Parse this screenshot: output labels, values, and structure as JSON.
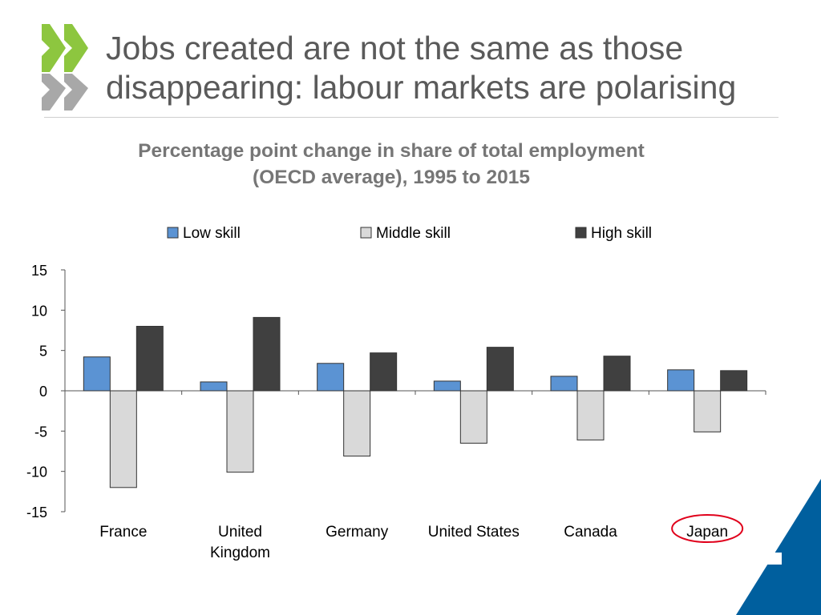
{
  "slide": {
    "title_line1": "Jobs created are not the same as those",
    "title_line2": "disappearing: labour markets are polarising",
    "accent_green": "#8dc63f",
    "accent_blue": "#005a9c",
    "title_color": "#5a5a5a"
  },
  "chart_data": {
    "type": "bar",
    "title_line1": "Percentage point change in share of total employment",
    "title_line2": "(OECD average), 1995 to 2015",
    "categories": [
      "France",
      "United Kingdom",
      "Germany",
      "United States",
      "Canada",
      "Japan"
    ],
    "category_lines": [
      [
        "France"
      ],
      [
        "United",
        "Kingdom"
      ],
      [
        "Germany"
      ],
      [
        "United States"
      ],
      [
        "Canada"
      ],
      [
        "Japan"
      ]
    ],
    "series": [
      {
        "name": "Low skill",
        "color": "#5b93d3",
        "values": [
          4.2,
          1.1,
          3.4,
          1.2,
          1.8,
          2.6
        ]
      },
      {
        "name": "Middle skill",
        "color": "#d9d9d9",
        "values": [
          -12.0,
          -10.1,
          -8.1,
          -6.5,
          -6.1,
          -5.1
        ]
      },
      {
        "name": "High skill",
        "color": "#404040",
        "values": [
          8.0,
          9.1,
          4.7,
          5.4,
          4.3,
          2.5
        ]
      }
    ],
    "ylim": [
      -15,
      15
    ],
    "yticks": [
      15,
      10,
      5,
      0,
      -5,
      -10,
      -15
    ],
    "grid": false,
    "legend_position": "top",
    "highlighted_category": "Japan",
    "highlight_color": "#e0001b"
  }
}
